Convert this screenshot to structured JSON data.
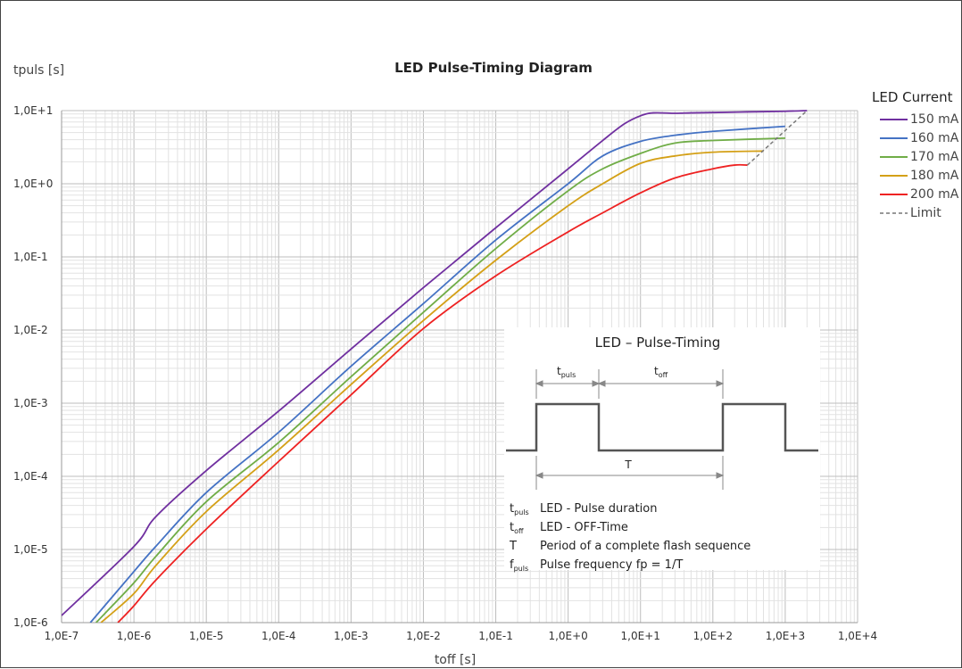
{
  "chart_data": {
    "type": "line",
    "title": "LED Pulse-Timing Diagram",
    "xlabel": "toff [s]",
    "ylabel": "tpuls [s]",
    "x_scale": "log",
    "y_scale": "log",
    "xlim": [
      1e-07,
      10000.0
    ],
    "ylim": [
      1e-06,
      10
    ],
    "x_ticks": [
      "1,0E-7",
      "1,0E-6",
      "1,0E-5",
      "1,0E-4",
      "1,0E-3",
      "1,0E-2",
      "1,0E-1",
      "1,0E+0",
      "1,0E+1",
      "1,0E+2",
      "1,0E+3",
      "1,0E+4"
    ],
    "y_ticks": [
      "1,0E-6",
      "1,0E-5",
      "1,0E-4",
      "1,0E-3",
      "1,0E-2",
      "1,0E-1",
      "1,0E+0",
      "1,0E+1"
    ],
    "grid": true,
    "legend_title": "LED Current",
    "legend_position": "right",
    "series": [
      {
        "name": "150 mA",
        "color": "#7030a0",
        "x": [
          1e-07,
          1e-06,
          2e-06,
          1e-05,
          0.0001,
          0.001,
          0.01,
          0.1,
          1,
          3,
          6,
          10,
          15,
          30,
          50,
          100,
          300,
          1000,
          2000
        ],
        "y": [
          1.25e-06,
          1.1e-05,
          2.8e-05,
          0.00012,
          0.00078,
          0.0055,
          0.038,
          0.25,
          1.6,
          3.9,
          6.6,
          8.5,
          9.3,
          9.2,
          9.3,
          9.4,
          9.6,
          9.8,
          10
        ]
      },
      {
        "name": "160 mA",
        "color": "#4472c4",
        "x": [
          2.5e-07,
          1e-06,
          2e-06,
          1e-05,
          0.0001,
          0.001,
          0.01,
          0.1,
          1,
          3,
          10,
          30,
          100,
          1000
        ],
        "y": [
          1e-06,
          5e-06,
          1.1e-05,
          6e-05,
          0.0004,
          0.0032,
          0.023,
          0.17,
          1.0,
          2.4,
          3.8,
          4.6,
          5.2,
          6.1
        ]
      },
      {
        "name": "170 mA",
        "color": "#70ad47",
        "x": [
          3e-07,
          1e-06,
          2e-06,
          1e-05,
          0.0001,
          0.001,
          0.01,
          0.1,
          1,
          3,
          10,
          30,
          100,
          1000
        ],
        "y": [
          1e-06,
          3.5e-06,
          8e-06,
          4.5e-05,
          0.00029,
          0.0023,
          0.0175,
          0.13,
          0.8,
          1.6,
          2.6,
          3.6,
          3.9,
          4.2
        ]
      },
      {
        "name": "180 mA",
        "color": "#d4a017",
        "x": [
          3.5e-07,
          1e-06,
          2e-06,
          1e-05,
          0.0001,
          0.001,
          0.01,
          0.1,
          1,
          3,
          10,
          30,
          100,
          500
        ],
        "y": [
          1e-06,
          2.5e-06,
          6e-06,
          3.3e-05,
          0.00023,
          0.0018,
          0.0135,
          0.09,
          0.5,
          1.0,
          1.9,
          2.4,
          2.7,
          2.8
        ]
      },
      {
        "name": "200 mA",
        "color": "#ee2222",
        "x": [
          6e-07,
          1e-06,
          2e-06,
          1e-05,
          0.0001,
          0.001,
          0.01,
          0.1,
          1,
          3,
          10,
          30,
          100,
          200,
          300
        ],
        "y": [
          1e-06,
          1.7e-06,
          3.8e-06,
          1.9e-05,
          0.00016,
          0.0013,
          0.0105,
          0.055,
          0.22,
          0.4,
          0.75,
          1.2,
          1.6,
          1.8,
          1.8
        ]
      },
      {
        "name": "Limit",
        "color": "#777777",
        "dashed": true,
        "x": [
          300,
          2000
        ],
        "y": [
          1.8,
          10
        ]
      }
    ]
  },
  "inset": {
    "title": "LED – Pulse-Timing",
    "label_tpuls_main": "t",
    "label_tpuls_sub": "puls",
    "label_toff_main": "t",
    "label_toff_sub": "off",
    "label_T": "T",
    "defs": [
      {
        "sym": "t",
        "sub": "puls",
        "text": "LED - Pulse duration"
      },
      {
        "sym": "t",
        "sub": "off",
        "text": "LED - OFF-Time"
      },
      {
        "sym": "T",
        "sub": "",
        "text": "Period of a complete flash sequence"
      },
      {
        "sym": "f",
        "sub": "puls",
        "text": "Pulse frequency fp = 1/T"
      }
    ]
  }
}
